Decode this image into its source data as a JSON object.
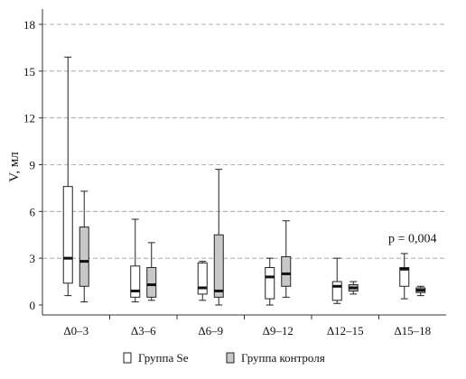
{
  "chart_data": {
    "type": "boxplot",
    "ylabel": "V, мл",
    "ylim": [
      0,
      19
    ],
    "yticks": [
      0,
      3,
      6,
      9,
      12,
      15,
      18
    ],
    "grid": "horizontal dashed",
    "legend_position": "bottom",
    "categories": [
      "Δ0–3",
      "Δ3–6",
      "Δ6–9",
      "Δ9–12",
      "Δ12–15",
      "Δ15–18"
    ],
    "series": [
      {
        "name": "Группа Se",
        "fill": "#ffffff",
        "boxes": [
          {
            "min": 0.6,
            "q1": 1.4,
            "median": 3.0,
            "q3": 7.6,
            "max": 15.9
          },
          {
            "min": 0.2,
            "q1": 0.5,
            "median": 0.9,
            "q3": 2.5,
            "max": 5.5
          },
          {
            "min": 0.3,
            "q1": 0.7,
            "median": 1.1,
            "q3": 2.7,
            "max": 2.8
          },
          {
            "min": 0.0,
            "q1": 0.4,
            "median": 1.8,
            "q3": 2.4,
            "max": 3.0
          },
          {
            "min": 0.1,
            "q1": 0.3,
            "median": 1.2,
            "q3": 1.5,
            "max": 3.0
          },
          {
            "min": 0.4,
            "q1": 1.2,
            "median": 2.3,
            "q3": 2.4,
            "max": 3.3
          }
        ]
      },
      {
        "name": "Группа контроля",
        "fill": "#c8c8c8",
        "boxes": [
          {
            "min": 0.2,
            "q1": 1.2,
            "median": 2.8,
            "q3": 5.0,
            "max": 7.3
          },
          {
            "min": 0.3,
            "q1": 0.5,
            "median": 1.3,
            "q3": 2.4,
            "max": 4.0
          },
          {
            "min": 0.0,
            "q1": 0.5,
            "median": 0.9,
            "q3": 4.5,
            "max": 8.7
          },
          {
            "min": 0.5,
            "q1": 1.2,
            "median": 2.0,
            "q3": 3.1,
            "max": 5.4
          },
          {
            "min": 0.7,
            "q1": 0.9,
            "median": 1.1,
            "q3": 1.3,
            "max": 1.5
          },
          {
            "min": 0.6,
            "q1": 0.8,
            "median": 0.95,
            "q3": 1.1,
            "max": 1.2
          }
        ]
      }
    ],
    "annotations": [
      {
        "text": "p = 0,004",
        "category_index": 5,
        "y": 4.3
      }
    ]
  }
}
